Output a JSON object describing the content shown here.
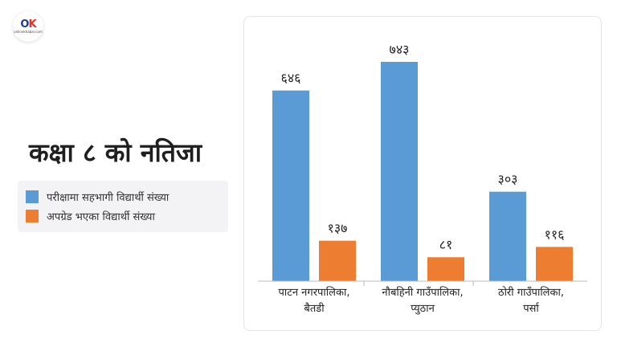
{
  "logo": {
    "mark_o": "O",
    "mark_k": "K",
    "sub": "onlinekhabar.com"
  },
  "chart_data": {
    "type": "bar",
    "title": "कक्षा ८ को नतिजा",
    "categories": [
      [
        "पाटन नगरपालिका,",
        "बैतडी"
      ],
      [
        "नौबहिनी गाउँपालिका,",
        "प्युठान"
      ],
      [
        "ठोरी गाउँपालिका,",
        "पर्सा"
      ]
    ],
    "series": [
      {
        "name": "परीक्षामा सहभागी विद्यार्थी संख्या",
        "color": "#5b9bd5",
        "values": [
          646,
          743,
          303
        ],
        "labels": [
          "६४६",
          "७४३",
          "३०३"
        ]
      },
      {
        "name": "अपग्रेड भएका विद्यार्थी संख्या",
        "color": "#ed7d31",
        "values": [
          137,
          81,
          116
        ],
        "labels": [
          "१३७",
          "८१",
          "११६"
        ]
      }
    ],
    "ylim": [
      0,
      743
    ],
    "grid": false,
    "legend": "left"
  }
}
